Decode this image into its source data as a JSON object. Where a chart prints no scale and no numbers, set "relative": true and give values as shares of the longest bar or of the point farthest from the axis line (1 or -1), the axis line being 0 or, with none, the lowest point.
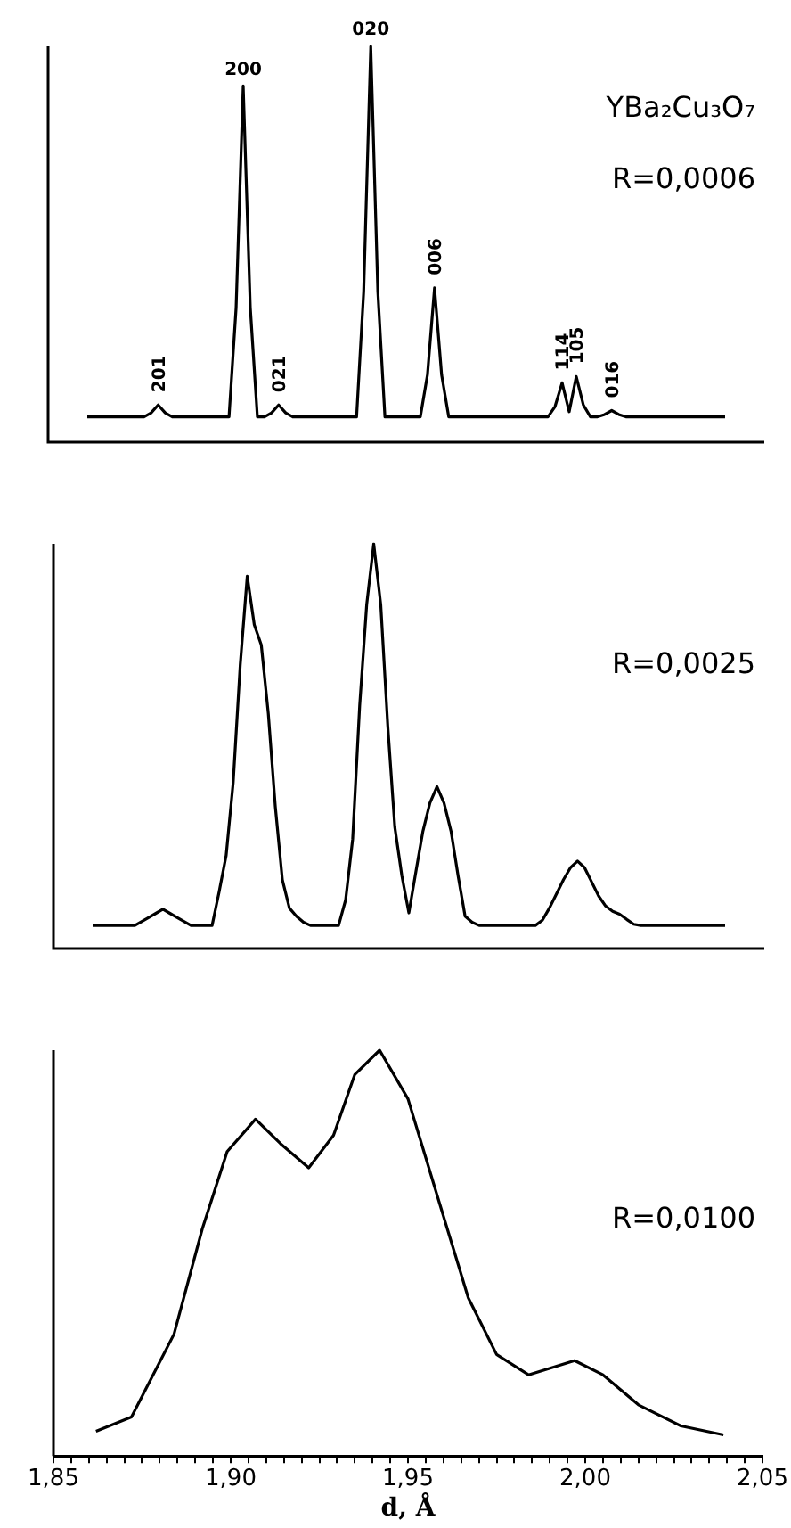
{
  "chart_data": [
    {
      "type": "line",
      "relative": true,
      "grid": false,
      "legend": false,
      "marker": "none",
      "line_style": "solid",
      "categories": [
        null,
        null,
        null,
        null,
        null,
        null,
        null,
        null,
        null,
        null,
        null,
        null,
        null,
        null,
        null,
        null,
        null,
        null,
        null,
        null,
        null,
        null,
        null,
        null,
        null,
        null,
        null,
        null,
        null,
        null,
        null,
        null,
        null,
        null,
        null,
        null,
        null,
        null,
        null,
        null,
        null,
        null,
        null,
        null,
        null,
        null,
        null,
        null,
        null,
        null,
        null,
        null,
        null,
        null,
        null,
        null,
        null,
        null,
        null,
        null,
        null,
        null,
        null,
        null,
        null,
        null,
        null,
        null,
        null,
        null,
        null,
        null,
        null,
        null,
        null,
        null,
        null,
        null,
        null,
        null,
        null,
        null,
        null,
        null,
        null,
        null,
        null,
        null,
        null,
        null,
        null
      ],
      "series": [
        {
          "color": "#000000",
          "values": [
            0.064,
            0.064,
            0.064,
            0.064,
            0.064,
            0.064,
            0.064,
            0.064,
            0.064,
            0.074,
            0.094,
            0.074,
            0.064,
            0.064,
            0.064,
            0.064,
            0.064,
            0.064,
            0.064,
            0.064,
            0.064,
            0.34,
            0.9,
            0.34,
            0.064,
            0.064,
            0.074,
            0.094,
            0.074,
            0.064,
            0.064,
            0.064,
            0.064,
            0.064,
            0.064,
            0.064,
            0.064,
            0.064,
            0.064,
            0.38,
            1,
            0.38,
            0.064,
            0.064,
            0.064,
            0.064,
            0.064,
            0.064,
            0.17,
            0.39,
            0.17,
            0.064,
            0.064,
            0.064,
            0.064,
            0.064,
            0.064,
            0.064,
            0.064,
            0.064,
            0.064,
            0.064,
            0.064,
            0.064,
            0.064,
            0.064,
            0.09,
            0.15,
            0.077,
            0.166,
            0.094,
            0.064,
            0.064,
            0.07,
            0.08,
            0.07,
            0.064,
            0.064,
            0.064,
            0.064,
            0.064,
            0.064,
            0.064,
            0.064,
            0.064,
            0.064,
            0.064,
            0.064,
            0.064,
            0.064,
            0.064
          ]
        }
      ],
      "annotations": [
        "YBa₂Cu₃O₇",
        "R=0,0006",
        {
          "text": "201",
          "y": 0.094
        },
        {
          "text": "200",
          "y": 0.9
        },
        {
          "text": "021",
          "y": 0.094
        },
        {
          "text": "020",
          "y": 1
        },
        {
          "text": "006",
          "y": 0.39
        },
        {
          "text": "114",
          "y": 0.15
        },
        {
          "text": "105",
          "y": 0.166
        },
        {
          "text": "016",
          "y": 0.08
        }
      ]
    },
    {
      "type": "line",
      "relative": true,
      "grid": false,
      "legend": false,
      "marker": "none",
      "line_style": "solid",
      "categories": [
        null,
        null,
        null,
        null,
        null,
        null,
        null,
        null,
        null,
        null,
        null,
        null,
        null,
        null,
        null,
        null,
        null,
        null,
        null,
        null,
        null,
        null,
        null,
        null,
        null,
        null,
        null,
        null,
        null,
        null,
        null,
        null,
        null,
        null,
        null,
        null,
        null,
        null,
        null,
        null,
        null,
        null,
        null,
        null,
        null,
        null,
        null,
        null,
        null,
        null,
        null,
        null,
        null,
        null,
        null,
        null,
        null,
        null,
        null,
        null,
        null,
        null,
        null,
        null,
        null,
        null,
        null,
        null,
        null,
        null,
        null,
        null,
        null,
        null,
        null,
        null,
        null,
        null,
        null,
        null,
        null,
        null,
        null,
        null,
        null,
        null,
        null,
        null,
        null,
        null,
        null
      ],
      "series": [
        {
          "color": "#000000",
          "values": [
            0.057,
            0.057,
            0.057,
            0.057,
            0.057,
            0.057,
            0.057,
            0.067,
            0.077,
            0.087,
            0.097,
            0.087,
            0.077,
            0.067,
            0.057,
            0.057,
            0.057,
            0.057,
            0.14,
            0.23,
            0.41,
            0.7,
            0.92,
            0.8,
            0.75,
            0.58,
            0.35,
            0.17,
            0.1,
            0.08,
            0.065,
            0.057,
            0.057,
            0.057,
            0.057,
            0.057,
            0.12,
            0.27,
            0.6,
            0.85,
            1,
            0.85,
            0.55,
            0.3,
            0.18,
            0.088,
            0.19,
            0.29,
            0.36,
            0.4,
            0.36,
            0.29,
            0.18,
            0.08,
            0.065,
            0.057,
            0.057,
            0.057,
            0.057,
            0.057,
            0.057,
            0.057,
            0.057,
            0.057,
            0.07,
            0.1,
            0.135,
            0.17,
            0.2,
            0.216,
            0.2,
            0.165,
            0.13,
            0.105,
            0.092,
            0.085,
            0.072,
            0.06,
            0.057,
            0.057,
            0.057,
            0.057,
            0.057,
            0.057,
            0.057,
            0.057,
            0.057,
            0.057,
            0.057,
            0.057,
            0.057
          ]
        }
      ],
      "annotations": [
        "R=0,0025"
      ]
    },
    {
      "type": "line",
      "relative": true,
      "xlim": [
        1.85,
        2.05
      ],
      "grid": false,
      "legend": false,
      "marker": "none",
      "line_style": "solid",
      "xlabel": "d, Å",
      "xticks": [
        {
          "value": 1.85,
          "label": "1,85"
        },
        {
          "value": 1.855,
          "label": null
        },
        {
          "value": 1.86,
          "label": null
        },
        {
          "value": 1.865,
          "label": null
        },
        {
          "value": 1.87,
          "label": null
        },
        {
          "value": 1.875,
          "label": null
        },
        {
          "value": 1.88,
          "label": null
        },
        {
          "value": 1.885,
          "label": null
        },
        {
          "value": 1.89,
          "label": null
        },
        {
          "value": 1.895,
          "label": null
        },
        {
          "value": 1.9,
          "label": "1,90"
        },
        {
          "value": 1.905,
          "label": null
        },
        {
          "value": 1.91,
          "label": null
        },
        {
          "value": 1.915,
          "label": null
        },
        {
          "value": 1.92,
          "label": null
        },
        {
          "value": 1.925,
          "label": null
        },
        {
          "value": 1.93,
          "label": null
        },
        {
          "value": 1.935,
          "label": null
        },
        {
          "value": 1.94,
          "label": null
        },
        {
          "value": 1.945,
          "label": null
        },
        {
          "value": 1.95,
          "label": "1,95"
        },
        {
          "value": 1.955,
          "label": null
        },
        {
          "value": 1.96,
          "label": null
        },
        {
          "value": 1.965,
          "label": null
        },
        {
          "value": 1.97,
          "label": null
        },
        {
          "value": 1.975,
          "label": null
        },
        {
          "value": 1.98,
          "label": null
        },
        {
          "value": 1.985,
          "label": null
        },
        {
          "value": 1.99,
          "label": null
        },
        {
          "value": 1.995,
          "label": null
        },
        {
          "value": 2.0,
          "label": "2,00"
        },
        {
          "value": 2.005,
          "label": null
        },
        {
          "value": 2.01,
          "label": null
        },
        {
          "value": 2.015,
          "label": null
        },
        {
          "value": 2.02,
          "label": null
        },
        {
          "value": 2.025,
          "label": null
        },
        {
          "value": 2.03,
          "label": null
        },
        {
          "value": 2.035,
          "label": null
        },
        {
          "value": 2.04,
          "label": null
        },
        {
          "value": 2.045,
          "label": null
        },
        {
          "value": 2.05,
          "label": "2,05"
        }
      ],
      "series": [
        {
          "color": "#000000",
          "x": [
            1.862,
            1.872,
            1.884,
            1.892,
            1.899,
            1.907,
            1.914,
            1.922,
            1.929,
            1.935,
            1.942,
            1.95,
            1.959,
            1.967,
            1.975,
            1.984,
            1.997,
            2.005,
            2.015,
            2.027,
            2.039
          ],
          "values": [
            0.061,
            0.096,
            0.3,
            0.56,
            0.75,
            0.83,
            0.77,
            0.71,
            0.79,
            0.94,
            1,
            0.88,
            0.62,
            0.39,
            0.25,
            0.2,
            0.235,
            0.2,
            0.126,
            0.074,
            0.052
          ]
        }
      ],
      "annotations": [
        "R=0,0100"
      ]
    }
  ]
}
